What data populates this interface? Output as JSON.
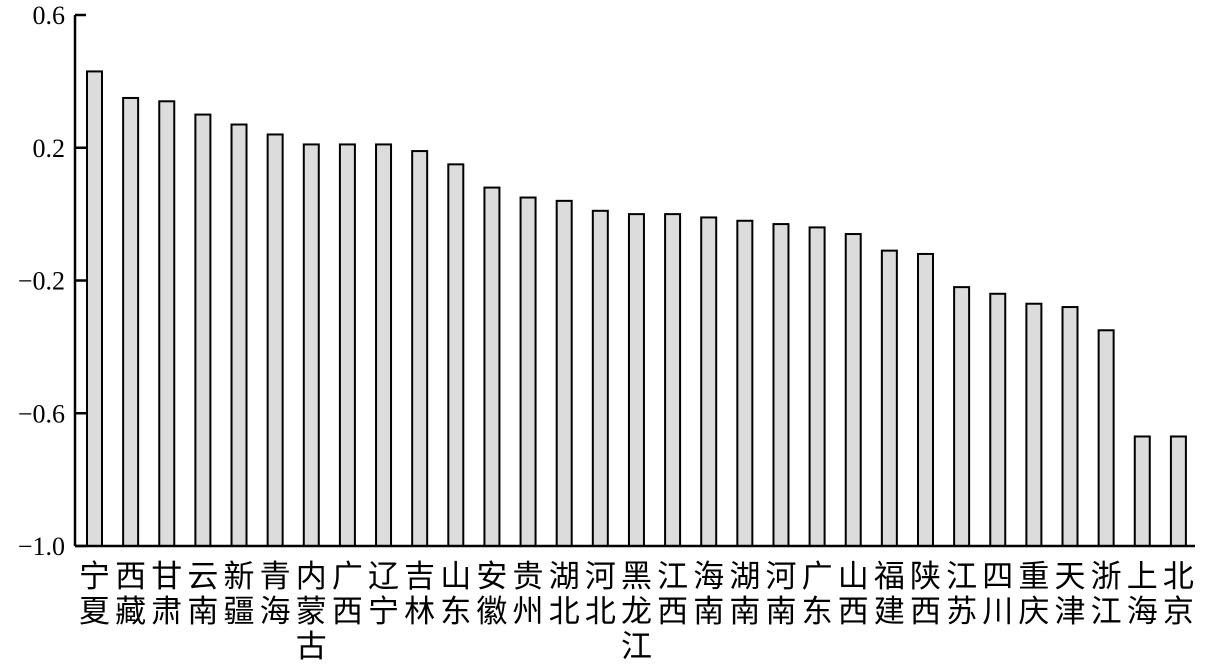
{
  "chart_data": {
    "type": "bar",
    "title": "",
    "xlabel": "",
    "ylabel": "",
    "ylim": [
      -1.0,
      0.6
    ],
    "yticks": [
      0.6,
      0.2,
      -0.2,
      -0.6,
      -1.0
    ],
    "ytick_labels": [
      "0.6",
      "0.2",
      "−0.2",
      "−0.6",
      "−1.0"
    ],
    "grid": false,
    "legend": "none",
    "bar_color": "#dcdcdc",
    "edge_color": "#000000",
    "categories": [
      "宁夏",
      "西藏",
      "甘肃",
      "云南",
      "新疆",
      "青海",
      "内蒙古",
      "广西",
      "辽宁",
      "吉林",
      "山东",
      "安徽",
      "贵州",
      "湖北",
      "河北",
      "黑龙江",
      "江西",
      "海南",
      "湖南",
      "河南",
      "广东",
      "山西",
      "福建",
      "陕西",
      "江苏",
      "四川",
      "重庆",
      "天津",
      "浙江",
      "上海",
      "北京"
    ],
    "values": [
      0.43,
      0.35,
      0.34,
      0.3,
      0.27,
      0.24,
      0.21,
      0.21,
      0.21,
      0.19,
      0.15,
      0.08,
      0.05,
      0.04,
      0.01,
      0.0,
      0.0,
      -0.01,
      -0.02,
      -0.03,
      -0.04,
      -0.06,
      -0.11,
      -0.12,
      -0.22,
      -0.24,
      -0.27,
      -0.28,
      -0.35,
      -0.67,
      -0.67
    ]
  }
}
